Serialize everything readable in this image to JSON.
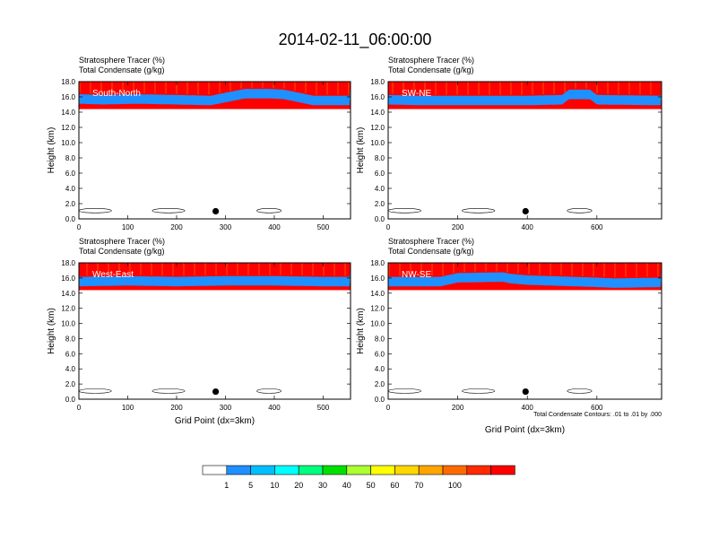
{
  "figure": {
    "title": "2014-02-11_06:00:00",
    "footnote": "Total Condensate Contours: .01 to .01 by .000"
  },
  "colorbar": {
    "colors": [
      "#ffffff",
      "#1e90ff",
      "#00bfff",
      "#00ffff",
      "#00ff7f",
      "#00e000",
      "#adff2f",
      "#ffff00",
      "#ffd700",
      "#ffa500",
      "#ff6a00",
      "#ff2a00",
      "#ff0000"
    ],
    "labels": [
      "1",
      "5",
      "10",
      "20",
      "30",
      "40",
      "50",
      "60",
      "70",
      "100"
    ]
  },
  "chart_data": [
    {
      "type": "heatmap",
      "panel": "South-North",
      "title_left": "Stratosphere Tracer   (%)",
      "subtitle_left": "Total Condensate   (g/kg)",
      "ylabel": "Height (km)",
      "xlabel": "",
      "xlim": [
        0,
        556
      ],
      "ylim": [
        0,
        18
      ],
      "xticks": [
        0,
        100,
        200,
        300,
        400,
        500
      ],
      "yticks": [
        "0.0",
        "2.0",
        "4.0",
        "6.0",
        "8.0",
        "10.0",
        "12.0",
        "14.0",
        "16.0",
        "18.0"
      ],
      "tropopause_km": [
        [
          0,
          15.8
        ],
        [
          50,
          15.7
        ],
        [
          120,
          15.8
        ],
        [
          200,
          15.7
        ],
        [
          270,
          15.6
        ],
        [
          340,
          16.5
        ],
        [
          390,
          16.5
        ],
        [
          420,
          16.4
        ],
        [
          480,
          15.6
        ],
        [
          556,
          15.6
        ]
      ],
      "marker": {
        "x": 280,
        "y": 1.0
      }
    },
    {
      "type": "heatmap",
      "panel": "SW-NE",
      "title_left": "Stratosphere Tracer   (%)",
      "subtitle_left": "Total Condensate   (g/kg)",
      "ylabel": "Height (km)",
      "xlabel": "",
      "xlim": [
        0,
        786
      ],
      "ylim": [
        0,
        18
      ],
      "xticks": [
        0,
        200,
        400,
        600
      ],
      "yticks": [
        "0.0",
        "2.0",
        "4.0",
        "6.0",
        "8.0",
        "10.0",
        "12.0",
        "14.0",
        "16.0",
        "18.0"
      ],
      "tropopause_km": [
        [
          0,
          15.7
        ],
        [
          100,
          15.6
        ],
        [
          250,
          15.6
        ],
        [
          400,
          15.6
        ],
        [
          500,
          15.7
        ],
        [
          520,
          16.4
        ],
        [
          580,
          16.4
        ],
        [
          600,
          15.7
        ],
        [
          786,
          15.6
        ]
      ],
      "marker": {
        "x": 395,
        "y": 1.0
      }
    },
    {
      "type": "heatmap",
      "panel": "West-East",
      "title_left": "Stratosphere Tracer   (%)",
      "subtitle_left": "Total Condensate   (g/kg)",
      "ylabel": "Height (km)",
      "xlabel": "Grid Point (dx=3km)",
      "xlim": [
        0,
        556
      ],
      "ylim": [
        0,
        18
      ],
      "xticks": [
        0,
        100,
        200,
        300,
        400,
        500
      ],
      "yticks": [
        "0.0",
        "2.0",
        "4.0",
        "6.0",
        "8.0",
        "10.0",
        "12.0",
        "14.0",
        "16.0",
        "18.0"
      ],
      "tropopause_km": [
        [
          0,
          15.6
        ],
        [
          100,
          15.7
        ],
        [
          200,
          15.6
        ],
        [
          300,
          15.7
        ],
        [
          400,
          15.7
        ],
        [
          500,
          15.6
        ],
        [
          556,
          15.6
        ]
      ],
      "marker": {
        "x": 280,
        "y": 1.0
      }
    },
    {
      "type": "heatmap",
      "panel": "NW-SE",
      "title_left": "Stratosphere Tracer   (%)",
      "subtitle_left": "Total Condensate   (g/kg)",
      "ylabel": "Height (km)",
      "xlabel": "Grid Point (dx=3km)",
      "xlim": [
        0,
        786
      ],
      "ylim": [
        0,
        18
      ],
      "xticks": [
        0,
        200,
        400,
        600
      ],
      "yticks": [
        "0.0",
        "2.0",
        "4.0",
        "6.0",
        "8.0",
        "10.0",
        "12.0",
        "14.0",
        "16.0",
        "18.0"
      ],
      "tropopause_km": [
        [
          0,
          15.6
        ],
        [
          150,
          15.6
        ],
        [
          200,
          16.1
        ],
        [
          330,
          16.2
        ],
        [
          350,
          16.0
        ],
        [
          400,
          15.8
        ],
        [
          600,
          15.5
        ],
        [
          650,
          15.4
        ],
        [
          786,
          15.5
        ]
      ],
      "marker": {
        "x": 395,
        "y": 1.0
      }
    }
  ]
}
